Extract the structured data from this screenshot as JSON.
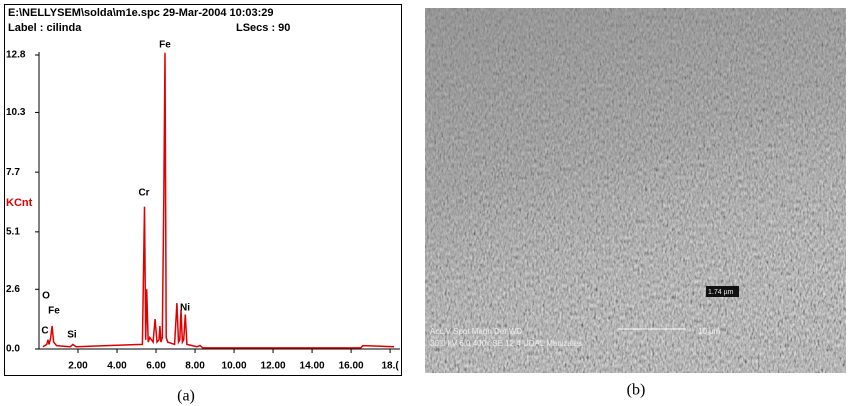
{
  "chart_data": {
    "type": "line",
    "header": [
      "E:\\NELLYSEM\\solda\\m1e.spc  29-Mar-2004 10:03:29",
      "Label : cilinda"
    ],
    "live_time": "LSecs :  90",
    "y_label": "KCnt",
    "color": "#e00000",
    "x": [
      0.2,
      0.4,
      0.46,
      0.52,
      0.6,
      0.67,
      0.75,
      0.9,
      1.6,
      1.74,
      1.9,
      5.3,
      5.41,
      5.47,
      5.52,
      5.6,
      5.68,
      5.85,
      5.95,
      6.05,
      6.15,
      6.2,
      6.25,
      6.32,
      6.4,
      6.46,
      6.52,
      6.6,
      6.95,
      7.07,
      7.15,
      7.22,
      7.28,
      7.35,
      7.42,
      7.5,
      7.58,
      8.1,
      8.26,
      8.4,
      10,
      16.5,
      16.6,
      18.2
    ],
    "values": [
      0.1,
      0.2,
      0.4,
      0.2,
      0.5,
      1.0,
      0.3,
      0.15,
      0.1,
      0.2,
      0.1,
      0.2,
      6.2,
      0.4,
      2.6,
      0.3,
      0.5,
      0.3,
      1.3,
      0.3,
      0.4,
      1.0,
      0.3,
      0.5,
      6.6,
      12.9,
      0.5,
      0.3,
      0.2,
      2.0,
      0.3,
      0.4,
      1.7,
      0.3,
      0.4,
      1.5,
      0.2,
      0.1,
      0.15,
      0.05,
      0.05,
      0.05,
      0.15,
      0.1
    ],
    "annotations": [
      "C",
      "O",
      "Fe",
      "Si",
      "Cr",
      "Fe",
      "Ni"
    ],
    "xlim": [
      0,
      18.2
    ],
    "ylim": [
      0,
      12.8
    ],
    "xticks": [
      {
        "value": 2,
        "label": "2.00"
      },
      {
        "value": 4,
        "label": "4.00"
      },
      {
        "value": 6,
        "label": "6.00"
      },
      {
        "value": 8,
        "label": "8.00"
      },
      {
        "value": 10,
        "label": "10.00"
      },
      {
        "value": 12,
        "label": "12.00"
      },
      {
        "value": 14,
        "label": "14.00"
      },
      {
        "value": 16,
        "label": "16.00"
      },
      {
        "value": 18,
        "label": "18.("
      }
    ],
    "yticks": [
      {
        "value": 0,
        "label": "0.0"
      },
      2.6,
      5.1,
      7.7,
      10.3,
      12.8
    ]
  },
  "sem": {
    "scale": "1.74 µm",
    "info": [
      "Acc.V   Spot Magn    Det  WD",
      "10 µm",
      "30.0 kV 6.0   400x     SE  12.4  UDAL  Manizales"
    ]
  },
  "captions": [
    "(a)",
    "(b)"
  ]
}
